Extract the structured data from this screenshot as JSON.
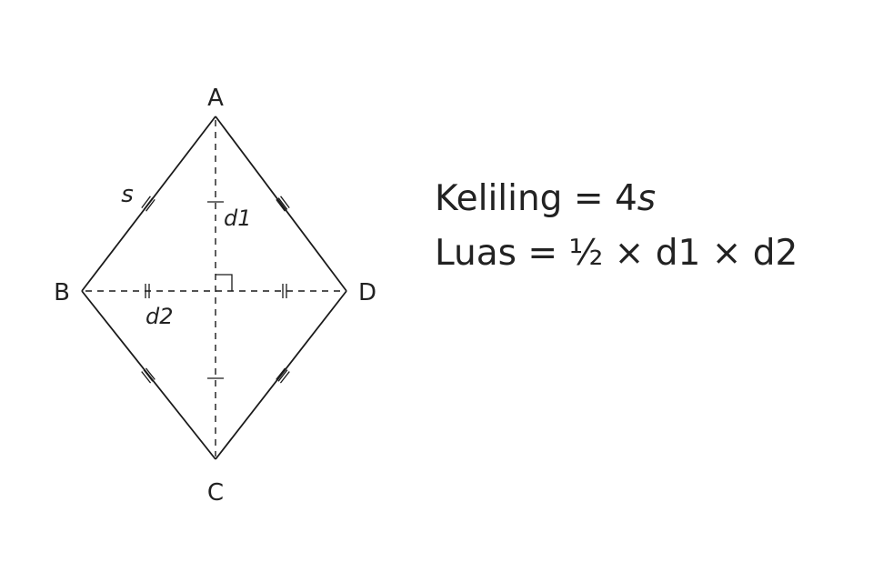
{
  "vertices": {
    "A": "A",
    "B": "B",
    "C": "C",
    "D": "D"
  },
  "labels": {
    "side": "s",
    "diag1": "d1",
    "diag2": "d2"
  },
  "formulas": {
    "perimeter": {
      "name": "Keliling",
      "eq": "=",
      "value": "4",
      "var": "s"
    },
    "area": {
      "name": "Luas",
      "eq": "=",
      "expr": "½ × d1 × d2"
    }
  }
}
